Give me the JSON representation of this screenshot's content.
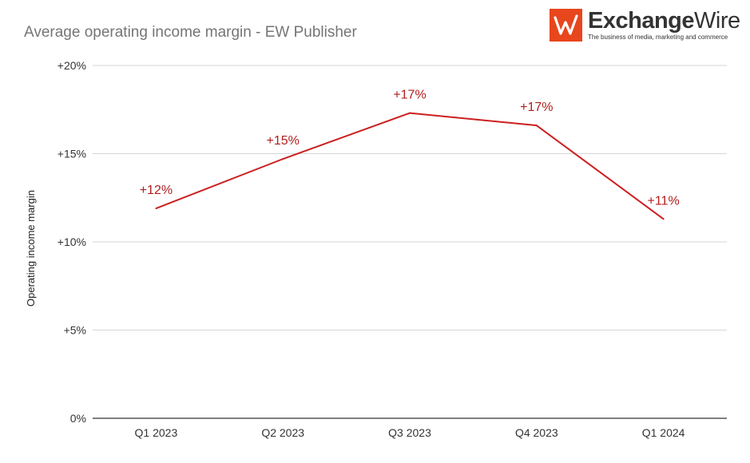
{
  "header": {
    "title": "Average operating income margin - EW Publisher"
  },
  "logo": {
    "name_bold": "Exchange",
    "name_thin": "Wire",
    "tagline": "The business of media, marketing and commerce",
    "brand_color": "#e8461d"
  },
  "chart_data": {
    "type": "line",
    "title": "Average operating income margin - EW Publisher",
    "xlabel": "",
    "ylabel": "Operating income margin",
    "categories": [
      "Q1 2023",
      "Q2 2023",
      "Q3 2023",
      "Q4 2023",
      "Q1 2024"
    ],
    "series": [
      {
        "values": [
          11.9,
          14.7,
          17.3,
          16.6,
          11.3
        ],
        "data_labels": [
          "+12%",
          "+15%",
          "+17%",
          "+17%",
          "+11%"
        ],
        "color": "#cc1f1f"
      }
    ],
    "ylim": [
      0,
      20
    ],
    "yticks": [
      0,
      5,
      10,
      15,
      20
    ],
    "ytick_labels": [
      "0%",
      "+5%",
      "+10%",
      "+15%",
      "+20%"
    ],
    "grid": true,
    "legend": "none"
  }
}
